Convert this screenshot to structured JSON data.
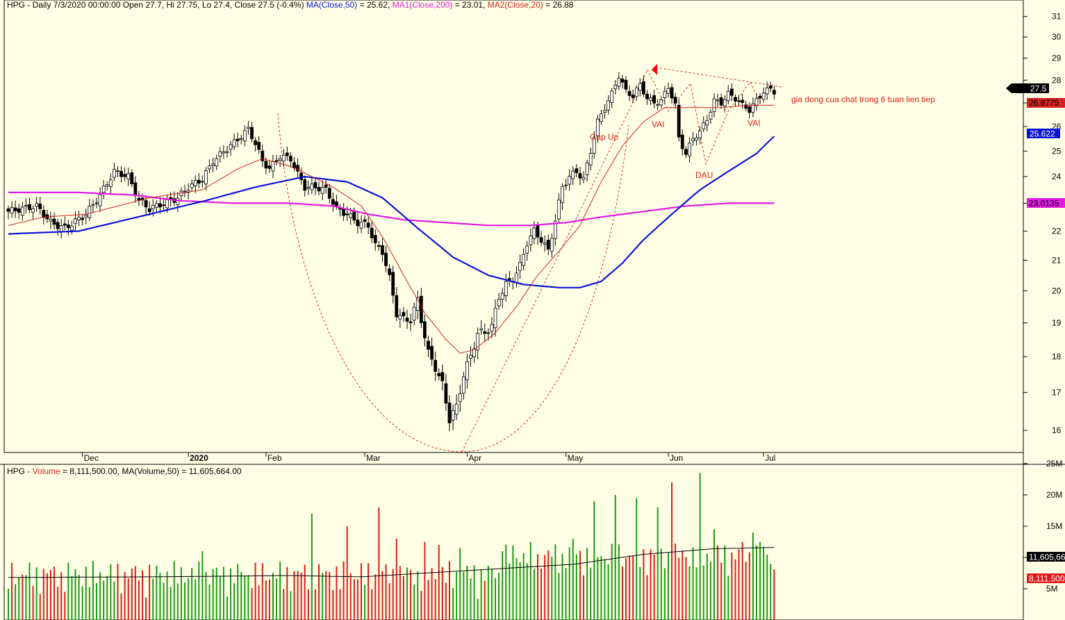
{
  "header": {
    "price": {
      "prefix": "HPG - Daily 7/3/2020 00:00:00 Open 27.7, Hi 27.75, Lo 27.4, Close 27.5 (-0.4%) ",
      "ma50": "MA(Close,50)",
      "ma50_val": " = 25.62, ",
      "ma200": "MA1(Close,200)",
      "ma200_val": " = 23.01, ",
      "ma20": "MA2(Close,20)",
      "ma20_val": " = 26.88"
    },
    "volume": {
      "prefix": "HPG - ",
      "vol": "Volume",
      "rest": " = 8,111,500.00, MA(Volume,50) = 11,605,664.00"
    }
  },
  "colors": {
    "background": "#ffffe6",
    "ma50": "#0a14d8",
    "ma200": "#e21ae2",
    "ma20": "#d42020",
    "up_volume": "#1a9a1a",
    "down_volume": "#e01a1a",
    "annotation": "#e0201a"
  },
  "chart_data": {
    "type": "candlestick",
    "symbol": "HPG",
    "y_axis_price": {
      "ticks": [
        16,
        17,
        18,
        19,
        20,
        21,
        22,
        23,
        24,
        25,
        26,
        27,
        28,
        29,
        30,
        31
      ],
      "range": [
        15.6,
        31.3
      ]
    },
    "y_axis_volume": {
      "ticks": [
        "5M",
        "10M",
        "15M",
        "20M",
        "25M"
      ],
      "range": [
        0,
        26000000
      ]
    },
    "x_months": [
      "Dec",
      "2020",
      "Feb",
      "Mar",
      "Apr",
      "May",
      "Jun",
      "Jul"
    ],
    "price_tags": {
      "last": "27.5",
      "ma20": "26.8775",
      "ma50": "25.622",
      "ma200": "23.0135"
    },
    "volume_tags": {
      "ma": "11,605,66",
      "last": "8,111,500"
    },
    "annotations": {
      "gap_up": "Gap Up",
      "vai_left": "VAI",
      "dau": "DAU",
      "vai_right": "VAI",
      "note": "gia dong cua chat trong 6 tuan lien tiep"
    },
    "anchors_close": [
      [
        0,
        22.7
      ],
      [
        8,
        22.9
      ],
      [
        12,
        22.3
      ],
      [
        16,
        22.1
      ],
      [
        22,
        22.6
      ],
      [
        26,
        23.3
      ],
      [
        30,
        24.2
      ],
      [
        34,
        24.0
      ],
      [
        37,
        23.1
      ],
      [
        40,
        22.8
      ],
      [
        44,
        23.0
      ],
      [
        48,
        23.2
      ],
      [
        51,
        23.6
      ],
      [
        55,
        23.9
      ],
      [
        58,
        24.6
      ],
      [
        62,
        25.1
      ],
      [
        66,
        25.6
      ],
      [
        68,
        25.9
      ],
      [
        70,
        25.3
      ],
      [
        72,
        24.6
      ],
      [
        74,
        24.3
      ],
      [
        77,
        24.8
      ],
      [
        80,
        24.7
      ],
      [
        82,
        24.1
      ],
      [
        84,
        23.6
      ],
      [
        87,
        23.6
      ],
      [
        90,
        23.5
      ],
      [
        93,
        22.8
      ],
      [
        96,
        22.6
      ],
      [
        99,
        22.3
      ],
      [
        102,
        22.2
      ],
      [
        104,
        21.5
      ],
      [
        106,
        21.3
      ],
      [
        108,
        20.4
      ],
      [
        110,
        19.3
      ],
      [
        112,
        19.1
      ],
      [
        114,
        19.1
      ],
      [
        116,
        19.7
      ],
      [
        117,
        19.1
      ],
      [
        119,
        18.1
      ],
      [
        121,
        17.7
      ],
      [
        123,
        17.2
      ],
      [
        125,
        16.3
      ],
      [
        127,
        16.6
      ],
      [
        129,
        17.5
      ],
      [
        131,
        18.0
      ],
      [
        133,
        18.7
      ],
      [
        135,
        18.7
      ],
      [
        137,
        18.9
      ],
      [
        139,
        19.8
      ],
      [
        141,
        20.2
      ],
      [
        143,
        20.4
      ],
      [
        145,
        20.8
      ],
      [
        147,
        21.6
      ],
      [
        149,
        22.0
      ],
      [
        151,
        21.7
      ],
      [
        153,
        21.3
      ],
      [
        155,
        22.4
      ],
      [
        157,
        23.6
      ],
      [
        159,
        24.0
      ],
      [
        161,
        24.2
      ],
      [
        163,
        23.9
      ],
      [
        165,
        25.0
      ],
      [
        167,
        26.2
      ],
      [
        169,
        26.8
      ],
      [
        171,
        27.4
      ],
      [
        173,
        28.2
      ],
      [
        175,
        27.5
      ],
      [
        177,
        27.3
      ],
      [
        179,
        27.8
      ],
      [
        181,
        27.2
      ],
      [
        183,
        27.0
      ],
      [
        185,
        27.1
      ],
      [
        187,
        27.7
      ],
      [
        189,
        26.9
      ],
      [
        190,
        25.5
      ],
      [
        192,
        24.9
      ],
      [
        194,
        25.5
      ],
      [
        196,
        25.8
      ],
      [
        198,
        26.3
      ],
      [
        200,
        27.1
      ],
      [
        202,
        27.0
      ],
      [
        204,
        27.4
      ],
      [
        206,
        27.2
      ],
      [
        208,
        26.9
      ],
      [
        210,
        26.7
      ],
      [
        212,
        27.1
      ],
      [
        214,
        27.5
      ],
      [
        216,
        27.6
      ],
      [
        217,
        27.5
      ]
    ],
    "anchors_ma20": [
      [
        0,
        22.2
      ],
      [
        10,
        22.5
      ],
      [
        22,
        22.6
      ],
      [
        40,
        23.2
      ],
      [
        55,
        23.5
      ],
      [
        65,
        24.3
      ],
      [
        72,
        24.7
      ],
      [
        80,
        24.4
      ],
      [
        92,
        23.6
      ],
      [
        100,
        22.9
      ],
      [
        106,
        21.8
      ],
      [
        112,
        20.5
      ],
      [
        118,
        19.3
      ],
      [
        124,
        18.5
      ],
      [
        128,
        18.1
      ],
      [
        132,
        18.2
      ],
      [
        138,
        18.7
      ],
      [
        144,
        19.5
      ],
      [
        150,
        20.5
      ],
      [
        156,
        21.3
      ],
      [
        162,
        22.2
      ],
      [
        168,
        23.8
      ],
      [
        174,
        25.2
      ],
      [
        180,
        26.2
      ],
      [
        186,
        26.8
      ],
      [
        194,
        26.8
      ],
      [
        202,
        26.8
      ],
      [
        210,
        26.9
      ],
      [
        217,
        26.9
      ]
    ],
    "anchors_ma50": [
      [
        0,
        21.9
      ],
      [
        20,
        22.0
      ],
      [
        40,
        22.6
      ],
      [
        56,
        23.1
      ],
      [
        70,
        23.6
      ],
      [
        84,
        24.0
      ],
      [
        96,
        23.8
      ],
      [
        106,
        23.2
      ],
      [
        116,
        22.1
      ],
      [
        126,
        21.1
      ],
      [
        136,
        20.5
      ],
      [
        146,
        20.2
      ],
      [
        156,
        20.1
      ],
      [
        162,
        20.1
      ],
      [
        168,
        20.3
      ],
      [
        174,
        20.9
      ],
      [
        180,
        21.7
      ],
      [
        188,
        22.6
      ],
      [
        196,
        23.5
      ],
      [
        204,
        24.2
      ],
      [
        212,
        24.9
      ],
      [
        217,
        25.6
      ]
    ],
    "anchors_ma200": [
      [
        0,
        23.4
      ],
      [
        20,
        23.4
      ],
      [
        36,
        23.3
      ],
      [
        48,
        23.1
      ],
      [
        64,
        23.0
      ],
      [
        80,
        23.0
      ],
      [
        92,
        22.9
      ],
      [
        102,
        22.6
      ],
      [
        112,
        22.4
      ],
      [
        124,
        22.3
      ],
      [
        136,
        22.2
      ],
      [
        148,
        22.2
      ],
      [
        158,
        22.3
      ],
      [
        168,
        22.5
      ],
      [
        180,
        22.7
      ],
      [
        192,
        22.9
      ],
      [
        204,
        23.0
      ],
      [
        217,
        23.0
      ]
    ],
    "series": [
      {
        "name": "MA(Close,50)",
        "values": [
          25.622
        ]
      },
      {
        "name": "MA1(Close,200)",
        "values": [
          23.0135
        ]
      },
      {
        "name": "MA2(Close,20)",
        "values": [
          26.8775
        ]
      },
      {
        "name": "Volume",
        "values": [
          8111500
        ]
      },
      {
        "name": "MA(Volume,50)",
        "values": [
          11605664
        ]
      }
    ],
    "volume_spikes": [
      [
        55,
        11
      ],
      [
        86,
        17
      ],
      [
        96,
        15
      ],
      [
        105,
        18
      ],
      [
        110,
        13
      ],
      [
        118,
        12.5
      ],
      [
        122,
        12
      ],
      [
        128,
        11.5
      ],
      [
        140,
        11
      ],
      [
        150,
        10.5
      ],
      [
        160,
        13
      ],
      [
        166,
        19
      ],
      [
        172,
        20
      ],
      [
        178,
        19.5
      ],
      [
        184,
        18
      ],
      [
        188,
        22
      ],
      [
        196,
        23.5
      ],
      [
        200,
        14.5
      ],
      [
        208,
        12.5
      ],
      [
        211,
        14
      ],
      [
        213,
        12.5
      ],
      [
        217,
        8.1
      ]
    ],
    "volume_ma_anchors": [
      [
        0,
        6.8
      ],
      [
        40,
        6.9
      ],
      [
        80,
        7.1
      ],
      [
        100,
        6.9
      ],
      [
        130,
        7.9
      ],
      [
        160,
        8.9
      ],
      [
        180,
        10.5
      ],
      [
        200,
        11.4
      ],
      [
        217,
        11.6
      ]
    ]
  }
}
